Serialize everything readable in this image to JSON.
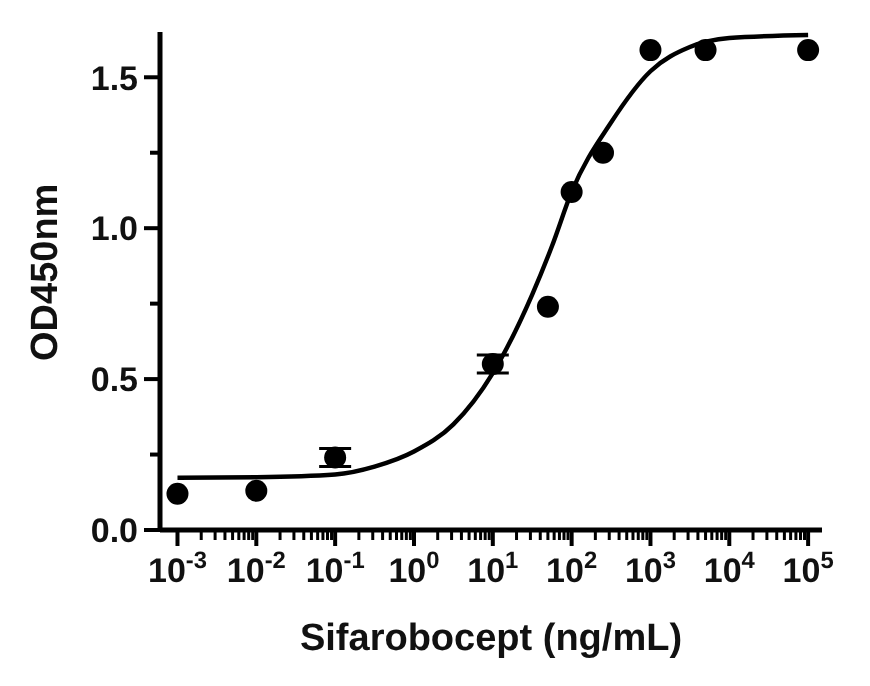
{
  "chart_data": {
    "type": "scatter",
    "xlabel": "Sifarobocept (ng/mL)",
    "ylabel": "OD450nm",
    "log": "x",
    "grid": false,
    "marker": "circle",
    "xlim": [
      0.0006,
      150000
    ],
    "ylim": [
      0,
      1.65
    ],
    "xticks": [
      {
        "value": 0.001,
        "label": "10$^{-3}$"
      },
      {
        "value": 0.01,
        "label": "10$^{-2}$"
      },
      {
        "value": 0.1,
        "label": "10$^{-1}$"
      },
      {
        "value": 1,
        "label": "10$^{0}$"
      },
      {
        "value": 10,
        "label": "10$^{1}$"
      },
      {
        "value": 100,
        "label": "10$^{2}$"
      },
      {
        "value": 1000,
        "label": "10$^{3}$"
      },
      {
        "value": 10000,
        "label": "10$^{4}$"
      },
      {
        "value": 100000,
        "label": "10$^{5}$"
      },
      {
        "value": 0.002,
        "label": null
      },
      {
        "value": 0.003,
        "label": null
      },
      {
        "value": 0.004,
        "label": null
      },
      {
        "value": 0.005,
        "label": null
      },
      {
        "value": 0.006,
        "label": null
      },
      {
        "value": 0.007,
        "label": null
      },
      {
        "value": 0.008,
        "label": null
      },
      {
        "value": 0.009,
        "label": null
      },
      {
        "value": 0.02,
        "label": null
      },
      {
        "value": 0.03,
        "label": null
      },
      {
        "value": 0.04,
        "label": null
      },
      {
        "value": 0.05,
        "label": null
      },
      {
        "value": 0.06,
        "label": null
      },
      {
        "value": 0.07,
        "label": null
      },
      {
        "value": 0.08,
        "label": null
      },
      {
        "value": 0.09,
        "label": null
      },
      {
        "value": 0.2,
        "label": null
      },
      {
        "value": 0.3,
        "label": null
      },
      {
        "value": 0.4,
        "label": null
      },
      {
        "value": 0.5,
        "label": null
      },
      {
        "value": 0.6,
        "label": null
      },
      {
        "value": 0.7,
        "label": null
      },
      {
        "value": 0.8,
        "label": null
      },
      {
        "value": 0.9,
        "label": null
      },
      {
        "value": 2,
        "label": null
      },
      {
        "value": 3,
        "label": null
      },
      {
        "value": 4,
        "label": null
      },
      {
        "value": 5,
        "label": null
      },
      {
        "value": 6,
        "label": null
      },
      {
        "value": 7,
        "label": null
      },
      {
        "value": 8,
        "label": null
      },
      {
        "value": 9,
        "label": null
      },
      {
        "value": 20,
        "label": null
      },
      {
        "value": 30,
        "label": null
      },
      {
        "value": 40,
        "label": null
      },
      {
        "value": 50,
        "label": null
      },
      {
        "value": 60,
        "label": null
      },
      {
        "value": 70,
        "label": null
      },
      {
        "value": 80,
        "label": null
      },
      {
        "value": 90,
        "label": null
      },
      {
        "value": 200,
        "label": null
      },
      {
        "value": 300,
        "label": null
      },
      {
        "value": 400,
        "label": null
      },
      {
        "value": 500,
        "label": null
      },
      {
        "value": 600,
        "label": null
      },
      {
        "value": 700,
        "label": null
      },
      {
        "value": 800,
        "label": null
      },
      {
        "value": 900,
        "label": null
      },
      {
        "value": 2000,
        "label": null
      },
      {
        "value": 3000,
        "label": null
      },
      {
        "value": 4000,
        "label": null
      },
      {
        "value": 5000,
        "label": null
      },
      {
        "value": 6000,
        "label": null
      },
      {
        "value": 7000,
        "label": null
      },
      {
        "value": 8000,
        "label": null
      },
      {
        "value": 9000,
        "label": null
      },
      {
        "value": 20000,
        "label": null
      },
      {
        "value": 30000,
        "label": null
      },
      {
        "value": 40000,
        "label": null
      },
      {
        "value": 50000,
        "label": null
      },
      {
        "value": 60000,
        "label": null
      },
      {
        "value": 70000,
        "label": null
      },
      {
        "value": 80000,
        "label": null
      },
      {
        "value": 90000,
        "label": null
      }
    ],
    "yticks": [
      {
        "value": 0,
        "label": "0.0"
      },
      {
        "value": 0.25,
        "label": null
      },
      0.5,
      {
        "value": 0.75,
        "label": null
      },
      {
        "value": 1,
        "label": "1.0"
      },
      {
        "value": 1.25,
        "label": null
      },
      1.5
    ],
    "series": [
      {
        "color": "#000000",
        "x": [
          0.001,
          0.01,
          0.1,
          10,
          50,
          100,
          250,
          1000,
          5000,
          100000
        ],
        "values": [
          0.12,
          0.13,
          0.24,
          0.55,
          0.74,
          1.12,
          1.25,
          1.59,
          1.59,
          1.59
        ],
        "errors": [
          null,
          null,
          0.03,
          0.03,
          null,
          null,
          null,
          null,
          null,
          null
        ]
      },
      {
        "type": "line",
        "color": "#000000",
        "marker": "none",
        "x": [
          0.001,
          0.01,
          0.1,
          0.316,
          1,
          3.16,
          10,
          31.6,
          56.2,
          100,
          316,
          1000,
          3160,
          10000,
          100000
        ],
        "values": [
          0.173,
          0.175,
          0.184,
          0.21,
          0.26,
          0.35,
          0.52,
          0.78,
          0.94,
          1.12,
          1.35,
          1.52,
          1.6,
          1.63,
          1.64
        ]
      }
    ]
  }
}
